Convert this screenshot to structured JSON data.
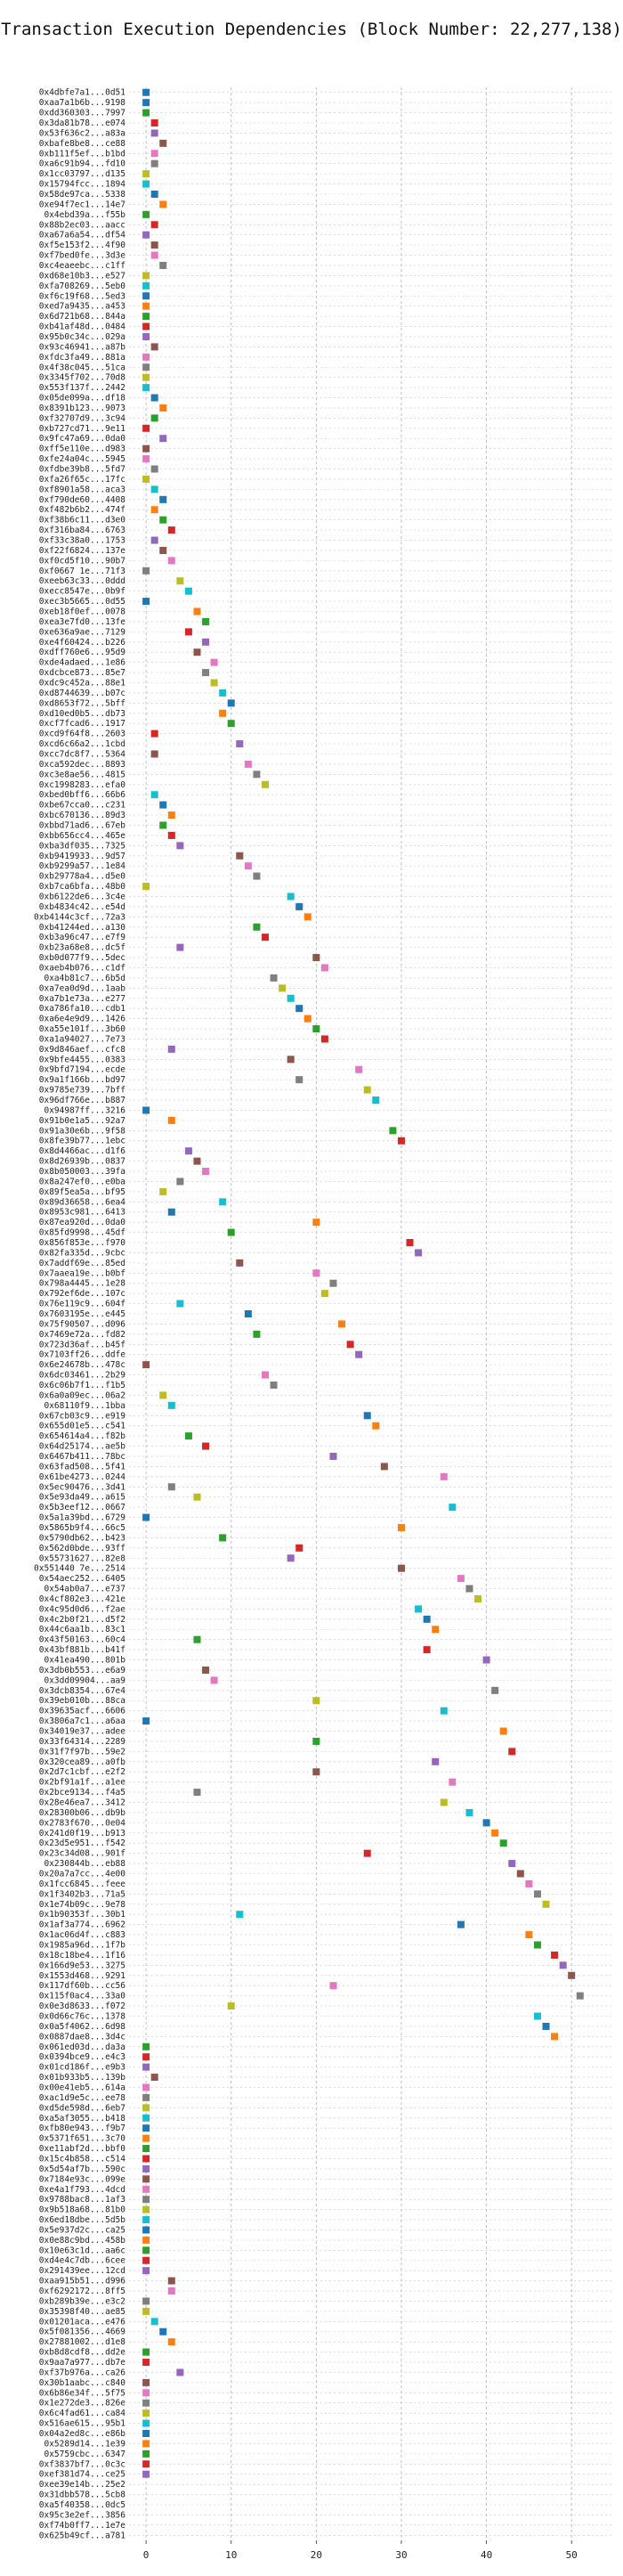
{
  "chart_data": {
    "type": "scatter",
    "title": "Transaction Execution Dependencies (Block Number: 22,277,138)",
    "xlabel": "",
    "ylabel": "",
    "xlim": [
      -2,
      55
    ],
    "xticks": [
      0,
      10,
      20,
      30,
      40,
      50
    ],
    "grid": true,
    "legend": "none",
    "palette": [
      "#1f77b4",
      "#ff7f0e",
      "#2ca02c",
      "#d62728",
      "#9467bd",
      "#8c564b",
      "#e377c2",
      "#7f7f7f",
      "#bcbd22",
      "#17becf"
    ],
    "transactions": [
      "0x4dbfe7a1...0d51",
      "0xaa7a1b6b...9198",
      "0xdd360303...7997",
      "0x3da81b78...e074",
      "0x53f636c2...a83a",
      "0xbafe8be8...ce88",
      "0xb111f5ef...b1bd",
      "0xa6c91b94...fd10",
      "0x1cc03797...d135",
      "0x15794fcc...1894",
      "0x58de97ca...5338",
      "0xe94f7ec1...14e7",
      "0x4ebd39a...f55b",
      "0x88b2ec03...aacc",
      "0xa67a6a54...df54",
      "0xf5e153f2...4f90",
      "0xf7bed0fe...3d3e",
      "0xc4eaeebc...c1ff",
      "0xd68e10b3...e527",
      "0xfa708269...5eb0",
      "0xf6c19f68...5ed3",
      "0xed7a9435...a453",
      "0x6d721b68...844a",
      "0xb41af48d...0484",
      "0x95b0c34c...029a",
      "0x93c46941...a87b",
      "0xfdc3fa49...881a",
      "0x4f38c045...51ca",
      "0x3345f702...70d8",
      "0x553f137f...2442",
      "0x05de099a...df18",
      "0x8391b123...9073",
      "0xf32707d9...3c94",
      "0xb727cd71...9e11",
      "0x9fc47a69...0da0",
      "0xff5e110e...d983",
      "0xfe24a04c...5945",
      "0xfdbe39b8...5fd7",
      "0xfa26f65c...17fc",
      "0xf8901a58...aca3",
      "0xf790de60...4408",
      "0xf482b6b2...474f",
      "0xf38b6c11...d3e0",
      "0xf316ba84...6763",
      "0xf33c38a0...1753",
      "0xf22f6824...137e",
      "0xf0cd5f10...90b7",
      "0xf0667 1e...71f3",
      "0xeeb63c33...0ddd",
      "0xecc8547e...0b9f",
      "0xec3b5665...0d55",
      "0xeb18f0ef...0078",
      "0xea3e7fd0...13fe",
      "0xe636a9ae...7129",
      "0xe4f60424...b226",
      "0xdff760e6...95d9",
      "0xde4adaed...1e86",
      "0xdcbce873...85e7",
      "0xdc9c452a...88e1",
      "0xd8744639...b07c",
      "0xd8653f72...5bff",
      "0xd10ed0b5...db73",
      "0xcf7fcad6...1917",
      "0xcd9f64f8...2603",
      "0xcd6c66a2...1cbd",
      "0xcc7dc8f7...5364",
      "0xca592dec...8893",
      "0xc3e8ae56...4815",
      "0xc1998283...efa0",
      "0xbed0bff6...66b6",
      "0xbe67cca0...c231",
      "0xbc670136...89d3",
      "0xbbd71ad6...67eb",
      "0xbb656cc4...465e",
      "0xba3df035...7325",
      "0xb9419933...9d57",
      "0xb9299a57...1e84",
      "0xb29778a4...d5e0",
      "0xb7ca6bfa...48b0",
      "0xb6122de6...3c4e",
      "0xb4834c42...e54d",
      "0xb4144c3cf...72a3",
      "0xb41244ed...a130",
      "0xb3a96c47...e7f9",
      "0xb23a68e8...dc5f",
      "0xb0d077f9...5dec",
      "0xaeb4b076...c1df",
      "0xa4b81c7...6b5d",
      "0xa7ea0d9d...1aab",
      "0xa7b1e73a...e277",
      "0xa786fa10...cdb1",
      "0xa6e4e9d9...1426",
      "0xa55e101f...3b60",
      "0xa1a94027...7e73",
      "0x9d846aef...cfc8",
      "0x9bfe4455...0383",
      "0x9bfd7194...ecde",
      "0x9a1f166b...bd97",
      "0x9785e739...7bff",
      "0x96df766e...b887",
      "0x94987ff...3216",
      "0x91b0e1a5...92a7",
      "0x91a30e6b...9f58",
      "0x8fe39b77...1ebc",
      "0x8d4466ac...d1f6",
      "0x8d26939b...0837",
      "0x8b050003...39fa",
      "0x8a247ef0...e0ba",
      "0x89f5ea5a...bf95",
      "0x89d36658...6ea4",
      "0x8953c981...6413",
      "0x87ea920d...0da0",
      "0x85fd9998...45df",
      "0x856f853e...f970",
      "0x82fa335d...9cbc",
      "0x7addf69e...85ed",
      "0x7aaea19e...b0bf",
      "0x798a4445...1e28",
      "0x792ef6de...107c",
      "0x76e119c9...604f",
      "0x7603195e...e445",
      "0x75f90507...d096",
      "0x7469e72a...fd82",
      "0x723d36af...b45f",
      "0x7103ff26...ddfe",
      "0x6e24678b...478c",
      "0x6dc03461...2b29",
      "0x6c06b7f1...f1b5",
      "0x6a0a09ec...06a2",
      "0x68110f9...1bba",
      "0x67cb03c9...e919",
      "0x655d01e5...c541",
      "0x654614a4...f82b",
      "0x64d25174...ae5b",
      "0x6467b411...78bc",
      "0x63fad508...5f41",
      "0x61be4273...0244",
      "0x5ec90476...3d41",
      "0x5e93da49...a615",
      "0x5b3eef12...0667",
      "0x5a1a39bd...6729",
      "0x5865b9f4...66c5",
      "0x5790db62...b423",
      "0x562d0bde...93ff",
      "0x55731627...82e8",
      "0x551440 7e...2514",
      "0x54aec252...6405",
      "0x54ab0a7...e737",
      "0x4cf802e3...421e",
      "0x4c95d0d6...f2ae",
      "0x4c2b0f21...d5f2",
      "0x44c6aa1b...83c1",
      "0x43f50163...60c4",
      "0x43bf881b...b41f",
      "0x41ea490...801b",
      "0x3db0b553...e6a9",
      "0x3dd09904...aa9",
      "0x3dcb8354...67e4",
      "0x39eb010b...88ca",
      "0x39635acf...6606",
      "0x3806a7c1...a6aa",
      "0x34019e37...adee",
      "0x33f64314...2289",
      "0x31f7f97b...59e2",
      "0x320cea89...a0fb",
      "0x2d7c1cbf...e2f2",
      "0x2bf91a1f...a1ee",
      "0x2bce9134...f4a5",
      "0x28e46ea7...3412",
      "0x28300b06...db9b",
      "0x2783f670...0e04",
      "0x241d0f19...b913",
      "0x23d5e951...f542",
      "0x23c34d08...901f",
      "0x230844b...eb88",
      "0x20a7a7cc...4e00",
      "0x1fcc6845...feee",
      "0x1f3402b3...71a5",
      "0x1e74b09c...9e78",
      "0x1b90353f...30b1",
      "0x1af3a774...6962",
      "0x1ac06d4f...c883",
      "0x1985a96d...1f7b",
      "0x18c18be4...1f16",
      "0x166d9e53...3275",
      "0x1553d468...9291",
      "0x117df60b...cc56",
      "0x115f0ac4...33a0",
      "0x0e3d8633...f072",
      "0x0d66c76c...1378",
      "0x0a5f4062...6d98",
      "0x0887dae8...3d4c",
      "0x061ed03d...da3a",
      "0x0394bce9...e4c3",
      "0x01cd186f...e9b3",
      "0x01b933b5...139b",
      "0x00e41eb5...614a",
      "0xac1d9e5c...ee78",
      "0xd5de598d...6eb7",
      "0xa5af3055...b418",
      "0xfb80e943...f9b7",
      "0x5371f651...3c70",
      "0xe11abf2d...bbf0",
      "0x15c4b858...c514",
      "0x5d54af7b...590c",
      "0x7184e93c...099e",
      "0xe4a1f793...4dcd",
      "0x9788bac8...1af3",
      "0x9b518a68...81b0",
      "0x6ed18dbe...5d5b",
      "0x5e937d2c...ca25",
      "0x0e88c9bd...458b",
      "0x10e63c1d...aa6c",
      "0xd4e4c7db...6cee",
      "0x291439ee...12cd",
      "0xaa915b51...d996",
      "0xf6292172...8ff5",
      "0xb289b39e...e3c2",
      "0x35398f40...ae85",
      "0x01201aca...e476",
      "0x5f081356...4669",
      "0x27881002...d1e8",
      "0xb8d8cdf8...dd2e",
      "0x9aa7a977...db7e",
      "0xf37b976a...ca26",
      "0x30b1aabc...c840",
      "0x6b86e34f...5f75",
      "0x1e272de3...826e",
      "0x6c4fad61...ca84",
      "0x516ae615...95b1",
      "0x04a2ed8c...e86b",
      "0x5289d14...1e39",
      "0x5759cbc...6347",
      "0xf3837bf7...0c3c",
      "0xef381d74...ce25",
      "0xee39e14b...25e2",
      "0x31dbb578...5cb8",
      "0xa5f40358...0dc5",
      "0x95c3e2ef...3856",
      "0xf74b0ff7...1e7e",
      "0x625b49cf...a781"
    ],
    "x": [
      0,
      0,
      0,
      1,
      1,
      2,
      1,
      1,
      0,
      0,
      1,
      2,
      0,
      1,
      0,
      1,
      1,
      2,
      0,
      0,
      0,
      0,
      0,
      0,
      0,
      1,
      0,
      0,
      0,
      0,
      1,
      2,
      1,
      0,
      2,
      0,
      0,
      1,
      0,
      1,
      2,
      1,
      2,
      3,
      1,
      2,
      3,
      0,
      4,
      5,
      0,
      6,
      7,
      5,
      7,
      6,
      8,
      7,
      8,
      9,
      10,
      9,
      10,
      1,
      11,
      1,
      12,
      13,
      14,
      1,
      2,
      3,
      2,
      3,
      4,
      11,
      12,
      13,
      0,
      17,
      18,
      19,
      13,
      14,
      4,
      20,
      21,
      15,
      16,
      17,
      18,
      19,
      20,
      21,
      3,
      17,
      25,
      18,
      26,
      27,
      0,
      3,
      29,
      30,
      5,
      6,
      7,
      4,
      2,
      9,
      3,
      20,
      10,
      31,
      32,
      11,
      20,
      22,
      21,
      4,
      12,
      23,
      13,
      24,
      25,
      0,
      14,
      15,
      2,
      3,
      26,
      27,
      5,
      7,
      22,
      28,
      35,
      3,
      6,
      36,
      0,
      30,
      9,
      18,
      17,
      30,
      37,
      38,
      39,
      32,
      33,
      34,
      6,
      33,
      40,
      7,
      8,
      41,
      20,
      35,
      0,
      42,
      20,
      43,
      34,
      20,
      36,
      6,
      35,
      38,
      40,
      41,
      42,
      26,
      43,
      44,
      45,
      46,
      47,
      11,
      37,
      45,
      46,
      48,
      49,
      50,
      22,
      51,
      10,
      46,
      47,
      48,
      0,
      0,
      0,
      1,
      0,
      0,
      0,
      0,
      0,
      0,
      0,
      0,
      0,
      0,
      0,
      0,
      0,
      0,
      0,
      0,
      0,
      0,
      0,
      3,
      3,
      0,
      0,
      1,
      2,
      3,
      0,
      0,
      4,
      0,
      0,
      0,
      0,
      0,
      0,
      0,
      0,
      0,
      0
    ],
    "colors": [
      0,
      0,
      2,
      3,
      4,
      5,
      6,
      7,
      8,
      9,
      0,
      1,
      2,
      3,
      4,
      5,
      6,
      7,
      8,
      9,
      0,
      1,
      2,
      3,
      4,
      5,
      6,
      7,
      8,
      9,
      0,
      1,
      2,
      3,
      4,
      5,
      6,
      7,
      8,
      9,
      0,
      1,
      2,
      3,
      4,
      5,
      6,
      7,
      8,
      9,
      0,
      1,
      2,
      3,
      4,
      5,
      6,
      7,
      8,
      9,
      0,
      1,
      2,
      3,
      4,
      5,
      6,
      7,
      8,
      9,
      0,
      1,
      2,
      3,
      4,
      5,
      6,
      7,
      8,
      9,
      0,
      1,
      2,
      3,
      4,
      5,
      6,
      7,
      8,
      9,
      0,
      1,
      2,
      3,
      4,
      5,
      6,
      7,
      8,
      9,
      0,
      1,
      2,
      3,
      4,
      5,
      6,
      7,
      8,
      9,
      0,
      1,
      2,
      3,
      4,
      5,
      6,
      7,
      8,
      9,
      0,
      1,
      2,
      3,
      4,
      5,
      6,
      7,
      8,
      9,
      0,
      1,
      2,
      3,
      4,
      5,
      6,
      7,
      8,
      9,
      0,
      1,
      2,
      3,
      4,
      5,
      6,
      7,
      8,
      9,
      0,
      1,
      2,
      3,
      4,
      5,
      6,
      7,
      8,
      9,
      0,
      1,
      2,
      3,
      4,
      5,
      6,
      7,
      8,
      9,
      0,
      1,
      2,
      3,
      4,
      5,
      6,
      7,
      8,
      9,
      0,
      1,
      2,
      3,
      4,
      5,
      6,
      7,
      8,
      9,
      0,
      1,
      2,
      3,
      4,
      5,
      6,
      7,
      8,
      9,
      0,
      1,
      2,
      3,
      4,
      5,
      6,
      7,
      8,
      9,
      0,
      1,
      2,
      3,
      4,
      5,
      6,
      7,
      8,
      9,
      0,
      1,
      2,
      3,
      4,
      5,
      6,
      7,
      8,
      9,
      0,
      1,
      2,
      3,
      4,
      5,
      6,
      7,
      8,
      9
    ]
  }
}
